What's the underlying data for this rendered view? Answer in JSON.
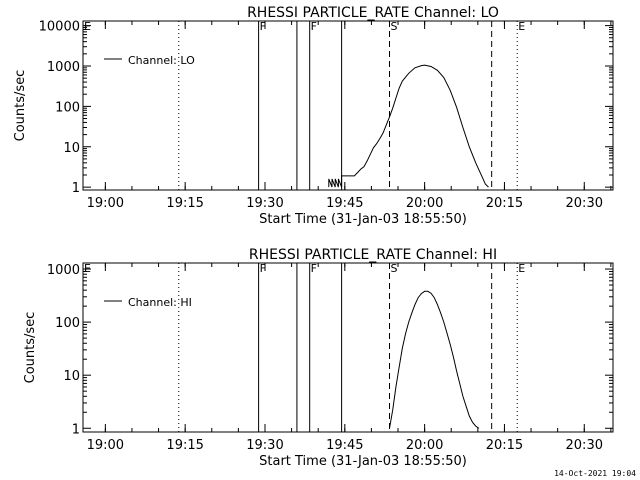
{
  "footer": {
    "timestamp": "14-Oct-2021 19:04"
  },
  "chart_data": [
    {
      "type": "line",
      "title": "RHESSI PARTICLE_RATE Channel: LO",
      "xlabel": "Start Time (31-Jan-03 18:55:50)",
      "ylabel": "Counts/sec",
      "yscale": "log",
      "xlim": [
        18.93,
        20.59
      ],
      "ylim": [
        0.85,
        13000
      ],
      "x_ticks": [
        19.0,
        19.25,
        19.5,
        19.75,
        20.0,
        20.25,
        20.5
      ],
      "x_tick_labels": [
        "19:00",
        "19:15",
        "19:30",
        "19:45",
        "20:00",
        "20:15",
        "20:30"
      ],
      "y_ticks": [
        1,
        10,
        100,
        1000,
        10000
      ],
      "y_tick_labels": [
        "1",
        "10",
        "100",
        "1000",
        "10000"
      ],
      "legend": {
        "label": "Channel: LO",
        "position": "top-left"
      },
      "markers": [
        {
          "x": 18.93,
          "label": "E",
          "style": "dotted"
        },
        {
          "x": 19.23,
          "label": "",
          "style": "dotted"
        },
        {
          "x": 19.48,
          "label": "F",
          "style": "solid"
        },
        {
          "x": 19.6,
          "label": "",
          "style": "solid"
        },
        {
          "x": 19.64,
          "label": "F",
          "style": "solid"
        },
        {
          "x": 19.74,
          "label": "",
          "style": "solid"
        },
        {
          "x": 19.89,
          "label": "S",
          "style": "dashed"
        },
        {
          "x": 20.21,
          "label": "",
          "style": "dashed"
        },
        {
          "x": 20.29,
          "label": "E",
          "style": "dotted"
        },
        {
          "x": 20.6,
          "label": "",
          "style": "dotted"
        }
      ],
      "series": [
        {
          "name": "Channel: LO",
          "x": [
            19.7,
            19.7,
            19.71,
            19.71,
            19.72,
            19.72,
            19.73,
            19.73,
            19.74,
            19.74,
            19.78,
            19.79,
            19.8,
            19.81,
            19.82,
            19.83,
            19.84,
            19.85,
            19.86,
            19.87,
            19.88,
            19.89,
            19.9,
            19.91,
            19.92,
            19.93,
            19.95,
            19.97,
            19.99,
            20.0,
            20.02,
            20.04,
            20.06,
            20.08,
            20.1,
            20.12,
            20.14,
            20.16,
            20.18,
            20.19,
            20.2
          ],
          "y": [
            1,
            1.6,
            1,
            1.6,
            1,
            1.6,
            1,
            1.6,
            1,
            1.9,
            1.9,
            2.3,
            2.8,
            3.2,
            4.5,
            6.5,
            9.5,
            12,
            16,
            22,
            35,
            55,
            90,
            160,
            280,
            420,
            660,
            900,
            1020,
            1050,
            970,
            780,
            520,
            250,
            95,
            30,
            10,
            4,
            1.8,
            1.2,
            1
          ]
        }
      ]
    },
    {
      "type": "line",
      "title": "RHESSI PARTICLE_RATE Channel: HI",
      "xlabel": "Start Time (31-Jan-03 18:55:50)",
      "ylabel": "Counts/sec",
      "yscale": "log",
      "xlim": [
        18.93,
        20.59
      ],
      "ylim": [
        0.85,
        1300
      ],
      "x_ticks": [
        19.0,
        19.25,
        19.5,
        19.75,
        20.0,
        20.25,
        20.5
      ],
      "x_tick_labels": [
        "19:00",
        "19:15",
        "19:30",
        "19:45",
        "20:00",
        "20:15",
        "20:30"
      ],
      "y_ticks": [
        1,
        10,
        100,
        1000
      ],
      "y_tick_labels": [
        "1",
        "10",
        "100",
        "1000"
      ],
      "legend": {
        "label": "Channel: HI",
        "position": "top-left"
      },
      "markers": [
        {
          "x": 18.93,
          "label": "E",
          "style": "dotted"
        },
        {
          "x": 19.23,
          "label": "",
          "style": "dotted"
        },
        {
          "x": 19.48,
          "label": "F",
          "style": "solid"
        },
        {
          "x": 19.6,
          "label": "",
          "style": "solid"
        },
        {
          "x": 19.64,
          "label": "F",
          "style": "solid"
        },
        {
          "x": 19.74,
          "label": "",
          "style": "solid"
        },
        {
          "x": 19.89,
          "label": "S",
          "style": "dashed"
        },
        {
          "x": 20.21,
          "label": "",
          "style": "dashed"
        },
        {
          "x": 20.29,
          "label": "E",
          "style": "dotted"
        },
        {
          "x": 20.6,
          "label": "",
          "style": "dotted"
        }
      ],
      "series": [
        {
          "name": "Channel: HI",
          "x": [
            19.89,
            19.9,
            19.91,
            19.92,
            19.93,
            19.94,
            19.95,
            19.96,
            19.97,
            19.98,
            19.99,
            20.0,
            20.01,
            20.02,
            20.03,
            20.04,
            20.05,
            20.06,
            20.07,
            20.08,
            20.09,
            20.1,
            20.11,
            20.12,
            20.13,
            20.14,
            20.15,
            20.16,
            20.17
          ],
          "y": [
            1,
            2.2,
            6,
            14,
            32,
            60,
            100,
            150,
            215,
            290,
            345,
            380,
            380,
            350,
            290,
            215,
            150,
            100,
            62,
            38,
            22,
            12,
            7,
            4,
            2.6,
            1.7,
            1.3,
            1.1,
            1
          ]
        }
      ]
    }
  ]
}
